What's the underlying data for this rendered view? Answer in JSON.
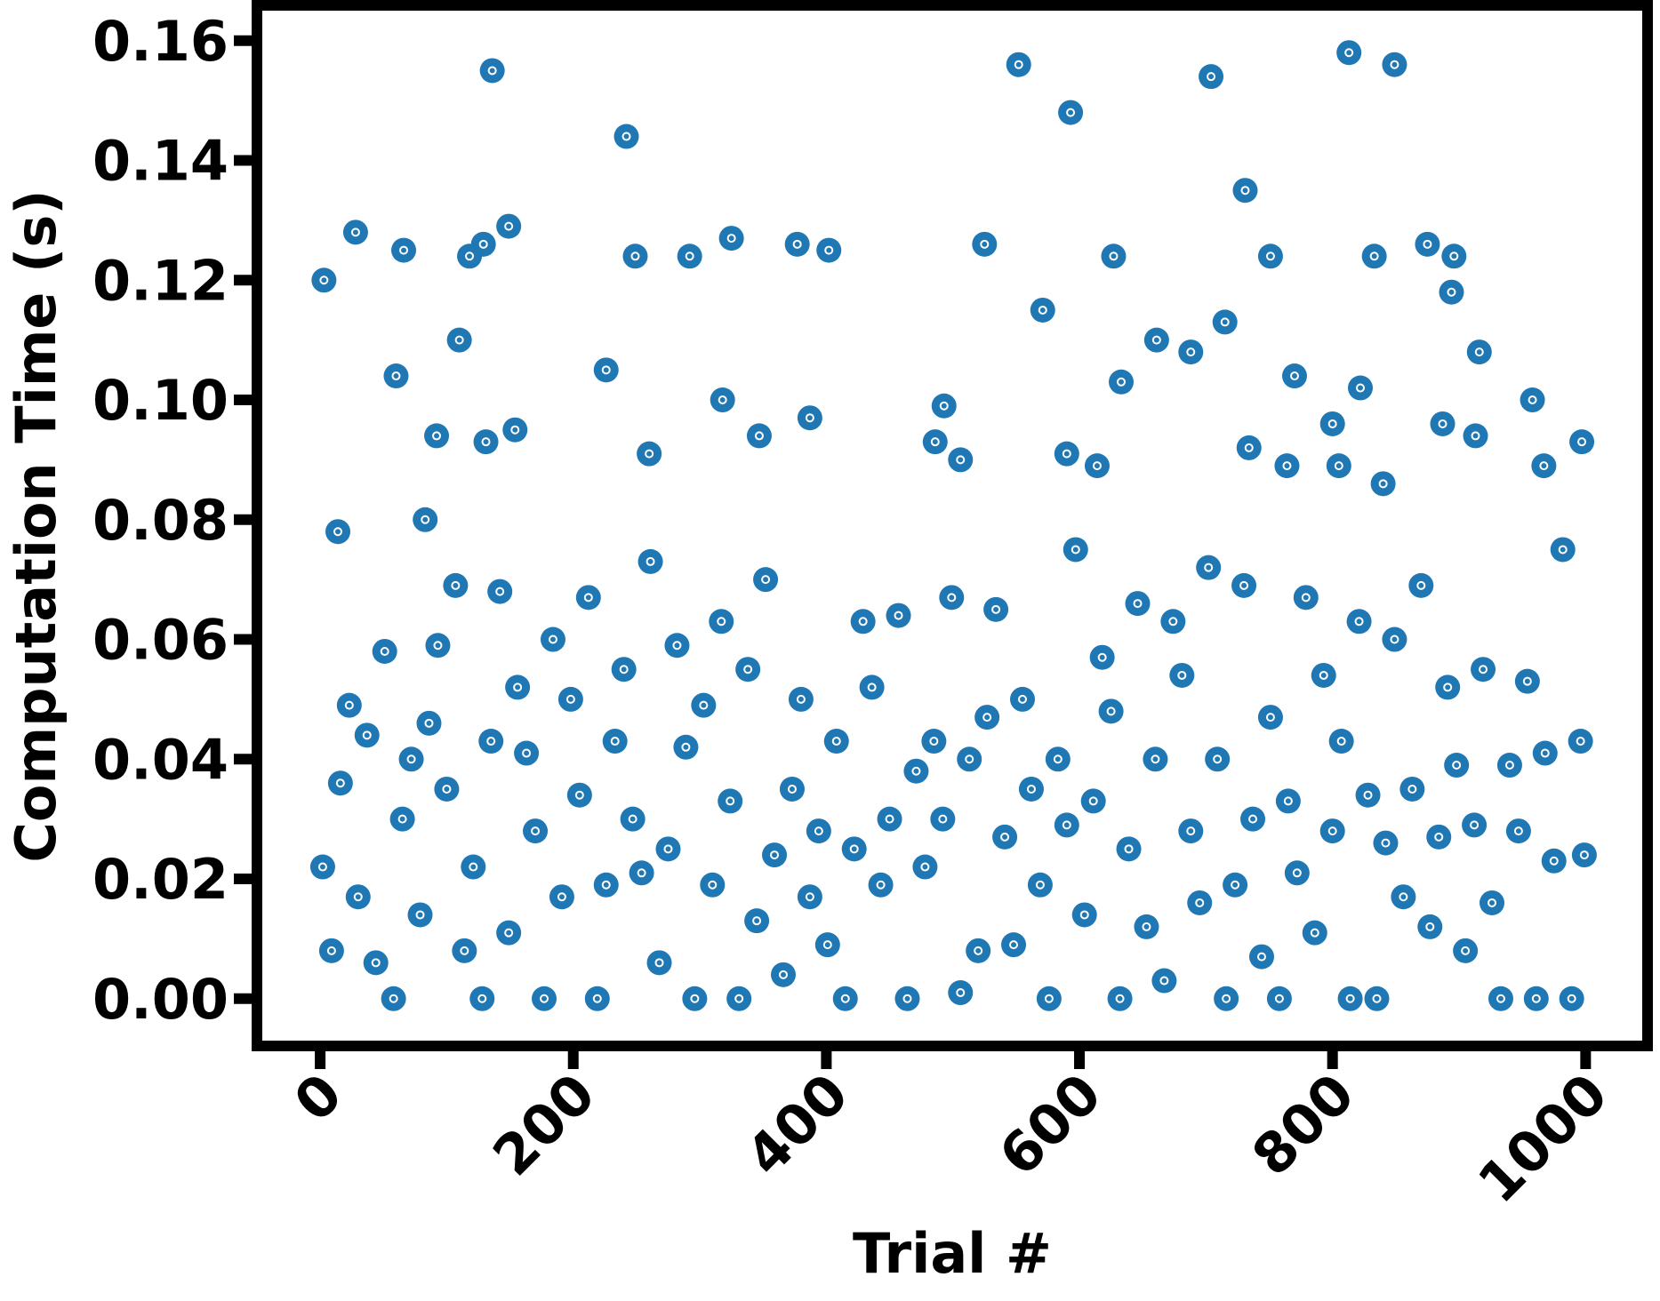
{
  "chart_data": {
    "type": "scatter",
    "x_label": "Trial #",
    "y_label": "Computation Time (s)",
    "color": "#1f77b4",
    "xlim": [
      -49.95,
      1048.95
    ],
    "ylim": [
      -0.0079,
      0.1659
    ],
    "xticks": [
      0,
      200,
      400,
      600,
      800,
      1000
    ],
    "yticks": [
      {
        "value": 0,
        "label": "0.00"
      },
      0.02,
      0.04,
      0.06,
      0.08,
      {
        "value": 0.1,
        "label": "0.10"
      },
      0.12,
      0.14,
      0.16
    ],
    "grid": false,
    "series": [
      {
        "name": "Computation Time",
        "x": [
          3,
          14,
          28,
          60,
          66,
          110,
          118,
          129,
          136,
          149,
          131,
          154,
          92,
          83,
          242,
          249,
          226,
          292,
          325,
          318,
          377,
          402,
          387,
          347,
          260,
          552,
          525,
          571,
          593,
          627,
          633,
          661,
          688,
          704,
          715,
          731,
          751,
          770,
          800,
          813,
          822,
          833,
          849,
          875,
          896,
          894,
          916,
          958,
          997,
          887,
          913,
          493,
          486,
          506,
          590,
          614,
          734,
          764,
          805,
          840,
          967,
          2,
          9,
          16,
          23,
          30,
          37,
          44,
          51,
          58,
          65,
          72,
          79,
          86,
          93,
          100,
          107,
          114,
          121,
          128,
          135,
          142,
          149,
          156,
          163,
          170,
          177,
          184,
          191,
          198,
          205,
          212,
          219,
          226,
          233,
          240,
          247,
          254,
          261,
          268,
          275,
          282,
          289,
          296,
          303,
          310,
          317,
          324,
          331,
          338,
          345,
          352,
          359,
          366,
          373,
          380,
          387,
          394,
          401,
          408,
          415,
          422,
          429,
          436,
          443,
          450,
          457,
          464,
          471,
          478,
          485,
          492,
          499,
          506,
          513,
          520,
          527,
          534,
          541,
          548,
          555,
          562,
          569,
          576,
          583,
          590,
          597,
          604,
          611,
          618,
          625,
          632,
          639,
          646,
          653,
          660,
          667,
          674,
          681,
          688,
          695,
          702,
          709,
          716,
          723,
          730,
          737,
          744,
          751,
          758,
          765,
          772,
          779,
          786,
          793,
          800,
          807,
          814,
          821,
          828,
          835,
          842,
          849,
          856,
          863,
          870,
          877,
          884,
          891,
          898,
          905,
          912,
          919,
          926,
          933,
          940,
          947,
          954,
          961,
          968,
          975,
          982,
          989,
          996,
          999
        ],
        "values": [
          0.12,
          0.078,
          0.128,
          0.104,
          0.125,
          0.11,
          0.124,
          0.126,
          0.155,
          0.129,
          0.093,
          0.095,
          0.094,
          0.08,
          0.144,
          0.124,
          0.105,
          0.124,
          0.127,
          0.1,
          0.126,
          0.125,
          0.097,
          0.094,
          0.091,
          0.156,
          0.126,
          0.115,
          0.148,
          0.124,
          0.103,
          0.11,
          0.108,
          0.154,
          0.113,
          0.135,
          0.124,
          0.104,
          0.096,
          0.158,
          0.102,
          0.124,
          0.156,
          0.126,
          0.124,
          0.118,
          0.108,
          0.1,
          0.093,
          0.096,
          0.094,
          0.099,
          0.093,
          0.09,
          0.091,
          0.089,
          0.092,
          0.089,
          0.089,
          0.086,
          0.089,
          0.022,
          0.008,
          0.036,
          0.049,
          0.017,
          0.044,
          0.006,
          0.058,
          0,
          0.03,
          0.04,
          0.014,
          0.046,
          0.059,
          0.035,
          0.069,
          0.008,
          0.022,
          0,
          0.043,
          0.068,
          0.011,
          0.052,
          0.041,
          0.028,
          0,
          0.06,
          0.017,
          0.05,
          0.034,
          0.067,
          0,
          0.019,
          0.043,
          0.055,
          0.03,
          0.021,
          0.073,
          0.006,
          0.025,
          0.059,
          0.042,
          0,
          0.049,
          0.019,
          0.063,
          0.033,
          0,
          0.055,
          0.013,
          0.07,
          0.024,
          0.004,
          0.035,
          0.05,
          0.017,
          0.028,
          0.009,
          0.043,
          0,
          0.025,
          0.063,
          0.052,
          0.019,
          0.03,
          0.064,
          0,
          0.038,
          0.022,
          0.043,
          0.03,
          0.067,
          0.001,
          0.04,
          0.008,
          0.047,
          0.065,
          0.027,
          0.009,
          0.05,
          0.035,
          0.019,
          0,
          0.04,
          0.029,
          0.075,
          0.014,
          0.033,
          0.057,
          0.048,
          0,
          0.025,
          0.066,
          0.012,
          0.04,
          0.003,
          0.063,
          0.054,
          0.028,
          0.016,
          0.072,
          0.04,
          0,
          0.019,
          0.069,
          0.03,
          0.007,
          0.047,
          0,
          0.033,
          0.021,
          0.067,
          0.011,
          0.054,
          0.028,
          0.043,
          0,
          0.063,
          0.034,
          0,
          0.026,
          0.06,
          0.017,
          0.035,
          0.069,
          0.012,
          0.027,
          0.052,
          0.039,
          0.008,
          0.029,
          0.055,
          0.016,
          0,
          0.039,
          0.028,
          0.053,
          0,
          0.041,
          0.023,
          0.075,
          0,
          0.043,
          0.024
        ]
      }
    ]
  }
}
